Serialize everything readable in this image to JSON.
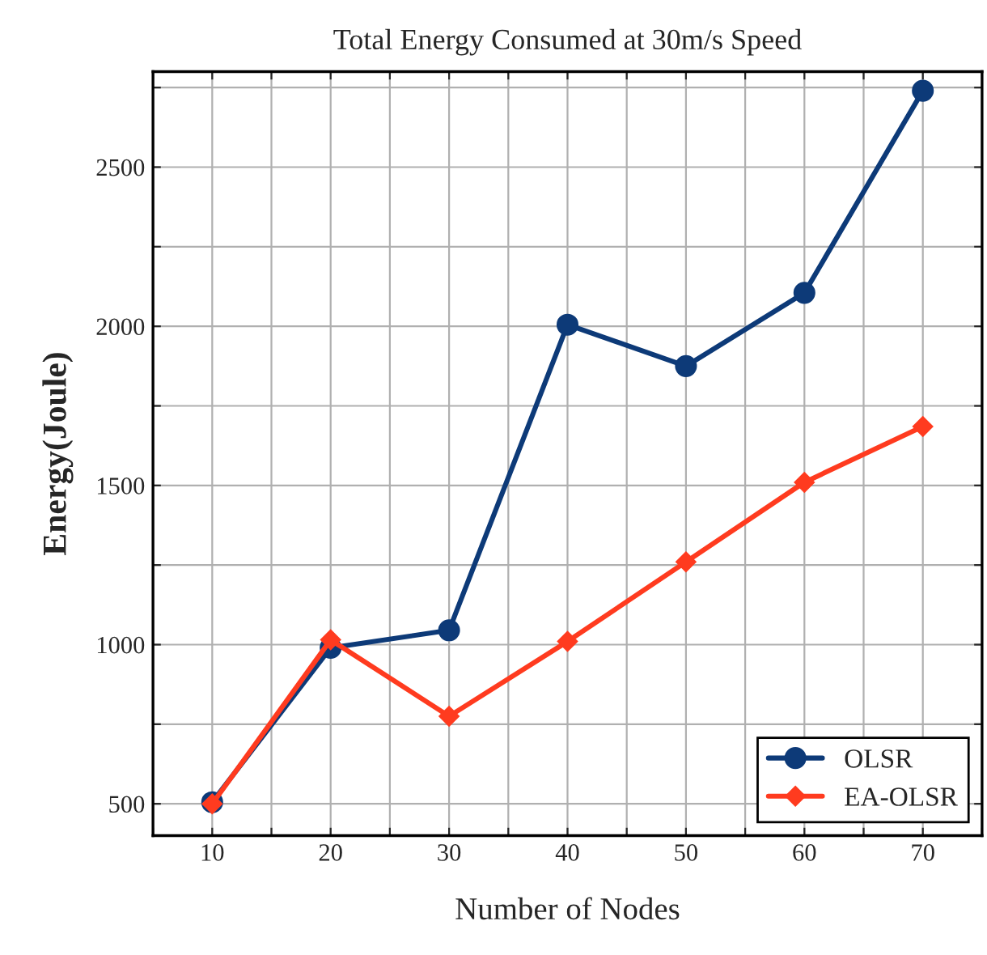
{
  "chart_data": {
    "type": "line",
    "title": "Total Energy Consumed at 30m/s Speed",
    "xlabel": "Number of Nodes",
    "ylabel": "Energy(Joule)",
    "x": [
      10,
      20,
      30,
      40,
      50,
      60,
      70
    ],
    "series": [
      {
        "name": "OLSR",
        "color": "#0d3a78",
        "marker": "circle",
        "values": [
          505,
          990,
          1045,
          2005,
          1875,
          2105,
          2740
        ]
      },
      {
        "name": "EA-OLSR",
        "color": "#ff3b1f",
        "marker": "diamond",
        "values": [
          500,
          1015,
          775,
          1010,
          1260,
          1510,
          1685
        ]
      }
    ],
    "xlim": [
      5,
      75
    ],
    "ylim": [
      400,
      2800
    ],
    "xticks": [
      {
        "value": 5,
        "label": null
      },
      10,
      {
        "value": 15,
        "label": null
      },
      20,
      {
        "value": 25,
        "label": null
      },
      30,
      {
        "value": 35,
        "label": null
      },
      40,
      {
        "value": 45,
        "label": null
      },
      50,
      {
        "value": 55,
        "label": null
      },
      60,
      {
        "value": 65,
        "label": null
      },
      70,
      {
        "value": 75,
        "label": null
      }
    ],
    "yticks": [
      500,
      {
        "value": 750,
        "label": null
      },
      1000,
      {
        "value": 1250,
        "label": null
      },
      1500,
      {
        "value": 1750,
        "label": null
      },
      2000,
      {
        "value": 2250,
        "label": null
      },
      2500,
      {
        "value": 2750,
        "label": null
      }
    ],
    "grid": true,
    "legend": "bottom right",
    "line_style": "solid"
  }
}
